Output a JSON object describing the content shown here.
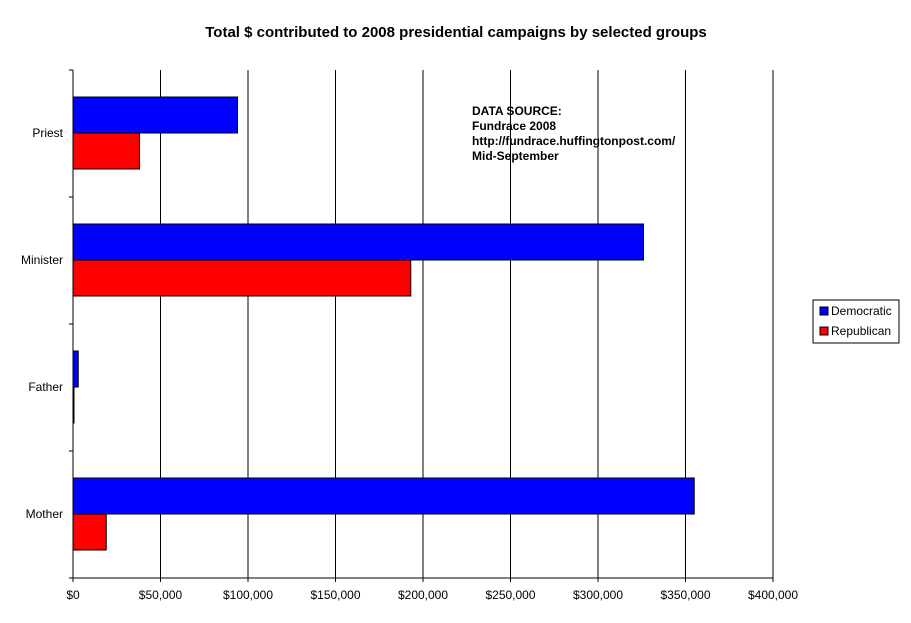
{
  "chart_data": {
    "type": "bar",
    "orientation": "horizontal",
    "title": "Total $ contributed to 2008 presidential campaigns by selected groups",
    "categories": [
      "Priest",
      "Minister",
      "Father",
      "Mother"
    ],
    "series": [
      {
        "name": "Democratic",
        "color": "#0000ff",
        "values": [
          94000,
          326000,
          3000,
          355000
        ]
      },
      {
        "name": "Republican",
        "color": "#ff0000",
        "values": [
          38000,
          193000,
          500,
          19000
        ]
      }
    ],
    "xlim": [
      0,
      400000
    ],
    "x_ticks": [
      0,
      50000,
      100000,
      150000,
      200000,
      250000,
      300000,
      350000,
      400000
    ],
    "x_tick_labels": [
      "$0",
      "$50,000",
      "$100,000",
      "$150,000",
      "$200,000",
      "$250,000",
      "$300,000",
      "$350,000",
      "$400,000"
    ],
    "grid": "vertical",
    "legend": "right",
    "annotation": [
      "DATA SOURCE:",
      "Fundrace 2008",
      "http://fundrace.huffingtonpost.com/",
      "Mid-September"
    ]
  }
}
